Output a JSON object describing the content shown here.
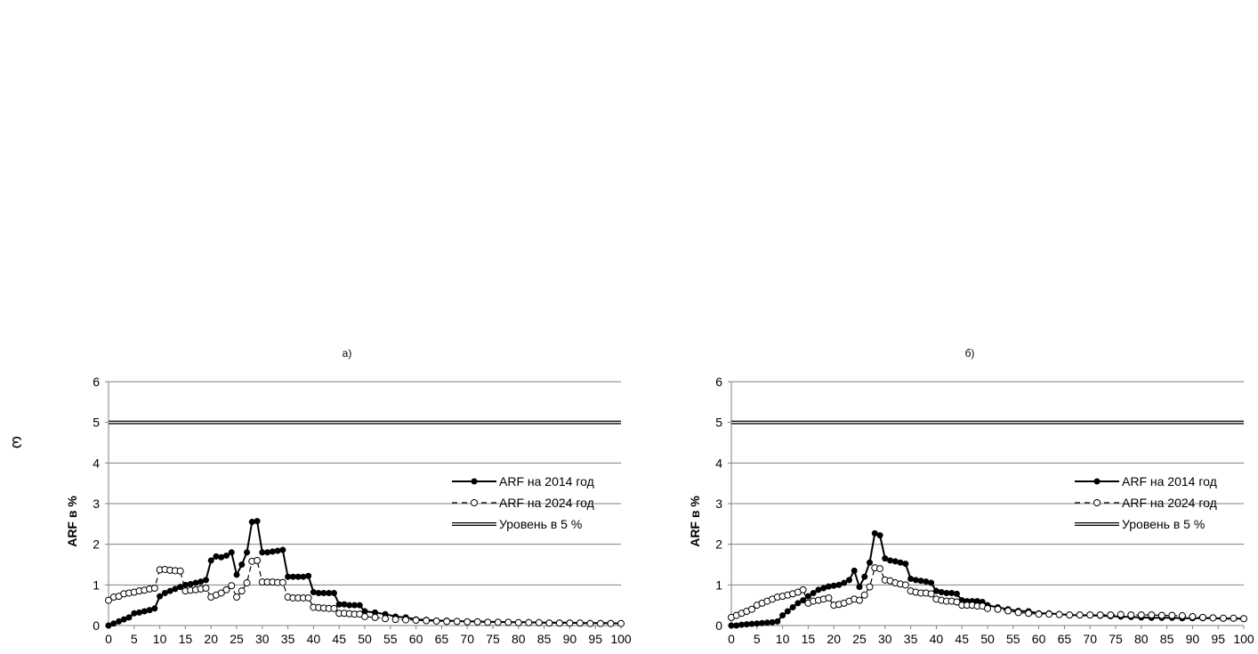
{
  "side_mark": "ω",
  "chart_data": [
    {
      "type": "line",
      "panel_label": "а)",
      "title": "",
      "xlabel": "",
      "ylabel": "ARF в %",
      "ylim": [
        0,
        6
      ],
      "xlim": [
        0,
        100
      ],
      "yticks": [
        0,
        1,
        2,
        3,
        4,
        5,
        6
      ],
      "xticks": [
        0,
        5,
        10,
        15,
        20,
        25,
        30,
        35,
        40,
        45,
        50,
        55,
        60,
        65,
        70,
        75,
        80,
        85,
        90,
        95,
        100
      ],
      "grid": true,
      "legend_position": "right",
      "series": [
        {
          "name": "ARF на 2014 год",
          "style": "solid-filled-marker",
          "color": "#000000",
          "x": [
            0,
            1,
            2,
            3,
            4,
            5,
            6,
            7,
            8,
            9,
            10,
            11,
            12,
            13,
            14,
            15,
            16,
            17,
            18,
            19,
            20,
            21,
            22,
            23,
            24,
            25,
            26,
            27,
            28,
            29,
            30,
            31,
            32,
            33,
            34,
            35,
            36,
            37,
            38,
            39,
            40,
            41,
            42,
            43,
            44,
            45,
            46,
            47,
            48,
            49,
            50,
            52,
            54,
            56,
            58,
            60,
            62,
            64,
            66,
            68,
            70,
            72,
            74,
            76,
            78,
            80,
            82,
            84,
            86,
            88,
            90,
            92,
            94,
            96,
            98,
            100
          ],
          "y": [
            0,
            0.05,
            0.1,
            0.15,
            0.2,
            0.3,
            0.32,
            0.35,
            0.38,
            0.42,
            0.72,
            0.8,
            0.85,
            0.9,
            0.95,
            1.0,
            1.02,
            1.05,
            1.08,
            1.12,
            1.6,
            1.7,
            1.68,
            1.72,
            1.8,
            1.25,
            1.5,
            1.8,
            2.55,
            2.57,
            1.8,
            1.8,
            1.82,
            1.84,
            1.86,
            1.2,
            1.2,
            1.2,
            1.2,
            1.22,
            0.82,
            0.8,
            0.8,
            0.8,
            0.8,
            0.52,
            0.52,
            0.5,
            0.5,
            0.5,
            0.35,
            0.32,
            0.28,
            0.22,
            0.2,
            0.15,
            0.14,
            0.12,
            0.12,
            0.11,
            0.1,
            0.1,
            0.09,
            0.09,
            0.08,
            0.08,
            0.08,
            0.07,
            0.07,
            0.07,
            0.07,
            0.06,
            0.06,
            0.06,
            0.06,
            0.05
          ]
        },
        {
          "name": "ARF на 2024 год",
          "style": "dashed-open-marker",
          "color": "#000000",
          "x": [
            0,
            1,
            2,
            3,
            4,
            5,
            6,
            7,
            8,
            9,
            10,
            11,
            12,
            13,
            14,
            15,
            16,
            17,
            18,
            19,
            20,
            21,
            22,
            23,
            24,
            25,
            26,
            27,
            28,
            29,
            30,
            31,
            32,
            33,
            34,
            35,
            36,
            37,
            38,
            39,
            40,
            41,
            42,
            43,
            44,
            45,
            46,
            47,
            48,
            49,
            50,
            52,
            54,
            56,
            58,
            60,
            62,
            64,
            66,
            68,
            70,
            72,
            74,
            76,
            78,
            80,
            82,
            84,
            86,
            88,
            90,
            92,
            94,
            96,
            98,
            100
          ],
          "y": [
            0.62,
            0.7,
            0.72,
            0.78,
            0.8,
            0.82,
            0.85,
            0.87,
            0.9,
            0.92,
            1.37,
            1.38,
            1.36,
            1.35,
            1.34,
            0.85,
            0.87,
            0.88,
            0.9,
            0.92,
            0.7,
            0.75,
            0.8,
            0.88,
            0.98,
            0.7,
            0.85,
            1.05,
            1.58,
            1.6,
            1.07,
            1.07,
            1.07,
            1.06,
            1.06,
            0.7,
            0.68,
            0.68,
            0.68,
            0.68,
            0.45,
            0.44,
            0.43,
            0.42,
            0.42,
            0.3,
            0.3,
            0.29,
            0.28,
            0.28,
            0.22,
            0.2,
            0.17,
            0.15,
            0.14,
            0.13,
            0.12,
            0.11,
            0.1,
            0.1,
            0.09,
            0.09,
            0.08,
            0.08,
            0.08,
            0.07,
            0.07,
            0.07,
            0.06,
            0.06,
            0.06,
            0.06,
            0.05,
            0.05,
            0.05,
            0.05
          ]
        },
        {
          "name": "Уровень в 5 %",
          "style": "double-line",
          "color": "#000000",
          "x": [
            0,
            100
          ],
          "y": [
            5,
            5
          ]
        }
      ]
    },
    {
      "type": "line",
      "panel_label": "б)",
      "title": "",
      "xlabel": "",
      "ylabel": "ARF в %",
      "ylim": [
        0,
        6
      ],
      "xlim": [
        0,
        100
      ],
      "yticks": [
        0,
        1,
        2,
        3,
        4,
        5,
        6
      ],
      "xticks": [
        0,
        5,
        10,
        15,
        20,
        25,
        30,
        35,
        40,
        45,
        50,
        55,
        60,
        65,
        70,
        75,
        80,
        85,
        90,
        95,
        100
      ],
      "grid": true,
      "legend_position": "right",
      "series": [
        {
          "name": "ARF на 2014 год",
          "style": "solid-filled-marker",
          "color": "#000000",
          "x": [
            0,
            1,
            2,
            3,
            4,
            5,
            6,
            7,
            8,
            9,
            10,
            11,
            12,
            13,
            14,
            15,
            16,
            17,
            18,
            19,
            20,
            21,
            22,
            23,
            24,
            25,
            26,
            27,
            28,
            29,
            30,
            31,
            32,
            33,
            34,
            35,
            36,
            37,
            38,
            39,
            40,
            41,
            42,
            43,
            44,
            45,
            46,
            47,
            48,
            49,
            50,
            52,
            54,
            56,
            58,
            60,
            62,
            64,
            66,
            68,
            70,
            72,
            74,
            76,
            78,
            80,
            82,
            84,
            86,
            88,
            90,
            92,
            94,
            96,
            98,
            100
          ],
          "y": [
            0,
            0,
            0.02,
            0.03,
            0.04,
            0.05,
            0.06,
            0.07,
            0.08,
            0.1,
            0.25,
            0.35,
            0.45,
            0.55,
            0.62,
            0.72,
            0.8,
            0.88,
            0.92,
            0.96,
            0.98,
            1.0,
            1.05,
            1.12,
            1.35,
            0.95,
            1.2,
            1.55,
            2.27,
            2.22,
            1.65,
            1.6,
            1.58,
            1.55,
            1.52,
            1.15,
            1.12,
            1.1,
            1.08,
            1.05,
            0.85,
            0.82,
            0.8,
            0.8,
            0.78,
            0.62,
            0.6,
            0.6,
            0.6,
            0.58,
            0.5,
            0.45,
            0.4,
            0.36,
            0.35,
            0.3,
            0.3,
            0.28,
            0.26,
            0.25,
            0.25,
            0.24,
            0.23,
            0.22,
            0.21,
            0.2,
            0.19,
            0.19,
            0.19,
            0.18,
            0.18,
            0.18,
            0.18,
            0.17,
            0.17,
            0.17
          ]
        },
        {
          "name": "ARF на 2024 год",
          "style": "dashed-open-marker",
          "color": "#000000",
          "x": [
            0,
            1,
            2,
            3,
            4,
            5,
            6,
            7,
            8,
            9,
            10,
            11,
            12,
            13,
            14,
            15,
            16,
            17,
            18,
            19,
            20,
            21,
            22,
            23,
            24,
            25,
            26,
            27,
            28,
            29,
            30,
            31,
            32,
            33,
            34,
            35,
            36,
            37,
            38,
            39,
            40,
            41,
            42,
            43,
            44,
            45,
            46,
            47,
            48,
            49,
            50,
            52,
            54,
            56,
            58,
            60,
            62,
            64,
            66,
            68,
            70,
            72,
            74,
            76,
            78,
            80,
            82,
            84,
            86,
            88,
            90,
            92,
            94,
            96,
            98,
            100
          ],
          "y": [
            0.2,
            0.25,
            0.3,
            0.35,
            0.4,
            0.5,
            0.55,
            0.6,
            0.65,
            0.7,
            0.72,
            0.75,
            0.78,
            0.82,
            0.88,
            0.55,
            0.6,
            0.62,
            0.65,
            0.68,
            0.5,
            0.52,
            0.55,
            0.6,
            0.65,
            0.62,
            0.75,
            0.95,
            1.42,
            1.4,
            1.12,
            1.1,
            1.05,
            1.02,
            1.0,
            0.85,
            0.82,
            0.8,
            0.8,
            0.78,
            0.65,
            0.62,
            0.6,
            0.6,
            0.58,
            0.5,
            0.5,
            0.5,
            0.48,
            0.48,
            0.42,
            0.4,
            0.36,
            0.32,
            0.3,
            0.28,
            0.28,
            0.27,
            0.26,
            0.26,
            0.26,
            0.26,
            0.26,
            0.27,
            0.26,
            0.26,
            0.26,
            0.25,
            0.25,
            0.24,
            0.22,
            0.2,
            0.19,
            0.18,
            0.18,
            0.17
          ]
        },
        {
          "name": "Уровень в 5 %",
          "style": "double-line",
          "color": "#000000",
          "x": [
            0,
            100
          ],
          "y": [
            5,
            5
          ]
        }
      ]
    }
  ]
}
